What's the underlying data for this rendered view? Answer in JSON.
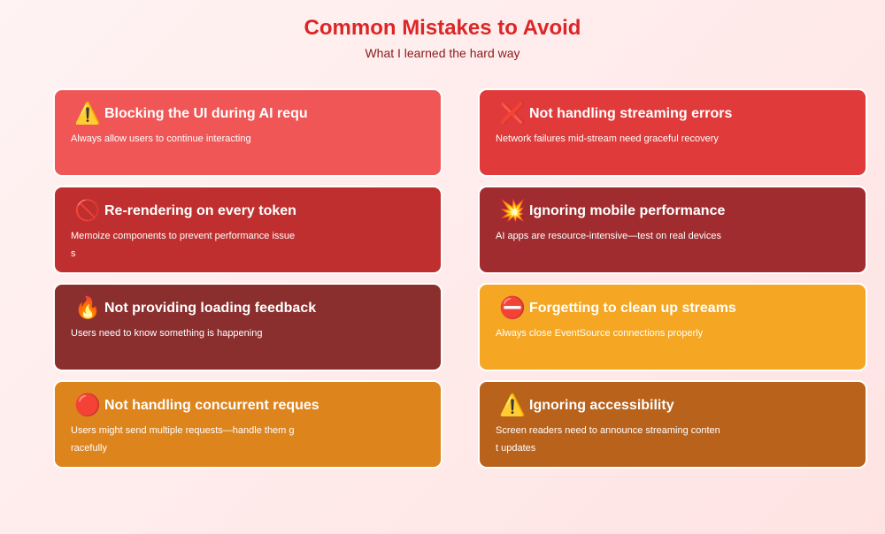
{
  "header": {
    "title": "Common Mistakes to Avoid",
    "subtitle": "What I learned the hard way"
  },
  "cards": [
    {
      "icon": "⚠️",
      "icon_name": "warning-icon",
      "title": "Blocking the UI during AI requ",
      "desc": "Always allow users to continue interacting",
      "color": "#f05656"
    },
    {
      "icon": "❌",
      "icon_name": "cross-mark-icon",
      "title": "Not handling streaming errors",
      "desc": "Network failures mid-stream need graceful recovery",
      "color": "#e03a3a"
    },
    {
      "icon": "🚫",
      "icon_name": "prohibited-icon",
      "title": "Re-rendering on every token",
      "desc": "Memoize components to prevent performance issues",
      "color": "#bf2f2f"
    },
    {
      "icon": "💥",
      "icon_name": "collision-icon",
      "title": "Ignoring mobile performance",
      "desc": "AI apps are resource-intensive—test on real devices",
      "color": "#a02c2f"
    },
    {
      "icon": "🔥",
      "icon_name": "fire-icon",
      "title": "Not providing loading feedback",
      "desc": "Users need to know something is happening",
      "color": "#8b2e2e"
    },
    {
      "icon": "⛔",
      "icon_name": "no-entry-icon",
      "title": "Forgetting to clean up streams",
      "desc": "Always close EventSource connections properly",
      "color": "#f5a623"
    },
    {
      "icon": "🔴",
      "icon_name": "red-circle-icon",
      "title": "Not handling concurrent reques",
      "desc": "Users might send multiple requests—handle them gracefully",
      "color": "#dd841c"
    },
    {
      "icon": "⚠️",
      "icon_name": "warning-icon",
      "title": "Ignoring accessibility",
      "desc": "Screen readers need to announce streaming content updates",
      "color": "#b8621c"
    }
  ]
}
